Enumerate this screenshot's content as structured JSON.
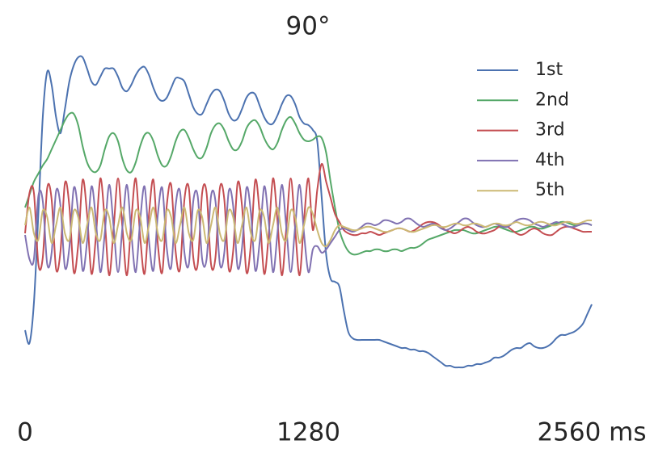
{
  "chart_data": {
    "type": "line",
    "title": "90°",
    "x": [
      0,
      20,
      40,
      60,
      80,
      100,
      120,
      140,
      160,
      180,
      200,
      220,
      240,
      260,
      280,
      300,
      320,
      340,
      360,
      380,
      400,
      420,
      440,
      460,
      480,
      500,
      520,
      540,
      560,
      580,
      600,
      620,
      640,
      660,
      680,
      700,
      720,
      740,
      760,
      780,
      800,
      820,
      840,
      860,
      880,
      900,
      920,
      940,
      960,
      980,
      1000,
      1020,
      1040,
      1060,
      1080,
      1100,
      1120,
      1140,
      1160,
      1180,
      1200,
      1220,
      1240,
      1260,
      1280,
      1300,
      1320,
      1340,
      1360,
      1380,
      1400,
      1420,
      1440,
      1460,
      1480,
      1500,
      1520,
      1540,
      1560,
      1580,
      1600,
      1620,
      1640,
      1660,
      1680,
      1700,
      1720,
      1740,
      1760,
      1780,
      1800,
      1820,
      1840,
      1860,
      1880,
      1900,
      1920,
      1940,
      1960,
      1980,
      2000,
      2020,
      2040,
      2060,
      2080,
      2100,
      2120,
      2140,
      2160,
      2180,
      2200,
      2220,
      2240,
      2260,
      2280,
      2300,
      2320,
      2340,
      2360,
      2380,
      2400,
      2420,
      2440,
      2460,
      2480,
      2500,
      2520,
      2540,
      2560
    ],
    "xlim": [
      0,
      2560
    ],
    "xticks": [
      0,
      1280,
      {
        "value": 2560,
        "label": "2560 ms"
      }
    ],
    "ylim": [
      -1.1,
      1.1
    ],
    "legend": "upper right",
    "series": [
      {
        "name": "1st",
        "color": "#4c72b0",
        "values": [
          -0.62,
          -0.7,
          -0.45,
          0.1,
          0.7,
          0.98,
          0.9,
          0.7,
          0.6,
          0.75,
          0.92,
          1.02,
          1.07,
          1.07,
          1.0,
          0.92,
          0.9,
          0.95,
          1.0,
          1.0,
          1.0,
          0.95,
          0.88,
          0.86,
          0.9,
          0.96,
          1.0,
          1.01,
          0.96,
          0.88,
          0.82,
          0.8,
          0.82,
          0.88,
          0.94,
          0.94,
          0.92,
          0.84,
          0.76,
          0.72,
          0.72,
          0.78,
          0.84,
          0.87,
          0.86,
          0.8,
          0.72,
          0.68,
          0.69,
          0.75,
          0.82,
          0.85,
          0.84,
          0.77,
          0.7,
          0.66,
          0.66,
          0.71,
          0.78,
          0.83,
          0.83,
          0.78,
          0.7,
          0.66,
          0.65,
          0.62,
          0.55,
          0.2,
          -0.15,
          -0.3,
          -0.32,
          -0.35,
          -0.5,
          -0.63,
          -0.67,
          -0.68,
          -0.68,
          -0.68,
          -0.68,
          -0.68,
          -0.68,
          -0.69,
          -0.7,
          -0.71,
          -0.72,
          -0.73,
          -0.73,
          -0.74,
          -0.74,
          -0.75,
          -0.75,
          -0.76,
          -0.78,
          -0.8,
          -0.82,
          -0.84,
          -0.84,
          -0.85,
          -0.85,
          -0.85,
          -0.84,
          -0.84,
          -0.83,
          -0.83,
          -0.82,
          -0.81,
          -0.79,
          -0.79,
          -0.78,
          -0.76,
          -0.74,
          -0.73,
          -0.73,
          -0.71,
          -0.7,
          -0.72,
          -0.73,
          -0.73,
          -0.72,
          -0.7,
          -0.67,
          -0.65,
          -0.65,
          -0.64,
          -0.63,
          -0.61,
          -0.58,
          -0.52,
          -0.46
        ]
      },
      {
        "name": "2nd",
        "color": "#55a868",
        "values": [
          0.14,
          0.22,
          0.3,
          0.35,
          0.4,
          0.44,
          0.5,
          0.56,
          0.62,
          0.68,
          0.72,
          0.72,
          0.65,
          0.52,
          0.42,
          0.37,
          0.36,
          0.4,
          0.5,
          0.58,
          0.6,
          0.55,
          0.44,
          0.37,
          0.36,
          0.42,
          0.52,
          0.59,
          0.6,
          0.55,
          0.46,
          0.4,
          0.4,
          0.46,
          0.55,
          0.61,
          0.62,
          0.57,
          0.5,
          0.45,
          0.45,
          0.51,
          0.6,
          0.65,
          0.66,
          0.62,
          0.55,
          0.5,
          0.5,
          0.55,
          0.63,
          0.67,
          0.68,
          0.64,
          0.57,
          0.52,
          0.5,
          0.54,
          0.62,
          0.68,
          0.7,
          0.66,
          0.6,
          0.56,
          0.55,
          0.56,
          0.58,
          0.57,
          0.48,
          0.3,
          0.14,
          0.0,
          -0.08,
          -0.13,
          -0.15,
          -0.15,
          -0.14,
          -0.13,
          -0.13,
          -0.12,
          -0.12,
          -0.13,
          -0.13,
          -0.12,
          -0.12,
          -0.13,
          -0.12,
          -0.11,
          -0.11,
          -0.1,
          -0.08,
          -0.06,
          -0.05,
          -0.04,
          -0.03,
          -0.02,
          -0.01,
          0.0,
          0.0,
          0.0,
          -0.01,
          -0.02,
          -0.02,
          -0.01,
          0.0,
          0.01,
          0.02,
          0.02,
          0.01,
          0.0,
          -0.01,
          -0.01,
          0.0,
          0.01,
          0.02,
          0.02,
          0.01,
          0.01,
          0.02,
          0.03,
          0.04,
          0.05,
          0.05,
          0.04,
          0.03,
          0.03,
          0.04,
          0.04,
          0.03
        ]
      },
      {
        "name": "3rd",
        "color": "#c44e52",
        "values": [
          -0.02,
          0.23,
          0.23,
          -0.21,
          -0.17,
          0.26,
          0.19,
          -0.24,
          -0.13,
          0.29,
          0.15,
          -0.26,
          -0.09,
          0.31,
          0.1,
          -0.27,
          -0.04,
          0.32,
          0.06,
          -0.28,
          0.01,
          0.32,
          0.01,
          -0.28,
          0.06,
          0.32,
          -0.04,
          -0.27,
          0.1,
          0.31,
          -0.09,
          -0.26,
          0.15,
          0.28,
          -0.13,
          -0.24,
          0.19,
          0.26,
          -0.17,
          -0.21,
          0.23,
          0.23,
          -0.21,
          -0.17,
          0.26,
          0.19,
          -0.24,
          -0.13,
          0.29,
          0.15,
          -0.26,
          -0.09,
          0.31,
          0.1,
          -0.27,
          -0.04,
          0.32,
          0.06,
          -0.28,
          0.01,
          0.32,
          0.01,
          -0.28,
          0.06,
          0.32,
          0.0,
          0.25,
          0.41,
          0.3,
          0.2,
          0.1,
          0.05,
          0.0,
          -0.02,
          -0.03,
          -0.03,
          -0.02,
          -0.02,
          -0.01,
          -0.02,
          -0.03,
          -0.02,
          -0.01,
          0.0,
          0.01,
          0.01,
          0.0,
          -0.01,
          0.0,
          0.02,
          0.04,
          0.05,
          0.05,
          0.04,
          0.02,
          0.0,
          -0.01,
          -0.02,
          -0.01,
          0.01,
          0.02,
          0.01,
          -0.01,
          -0.02,
          -0.02,
          -0.01,
          0.0,
          0.02,
          0.03,
          0.02,
          0.0,
          -0.02,
          -0.03,
          -0.02,
          0.0,
          0.01,
          0.0,
          -0.02,
          -0.03,
          -0.03,
          -0.01,
          0.01,
          0.02,
          0.02,
          0.01,
          0.0,
          -0.01,
          -0.01,
          -0.01
        ]
      },
      {
        "name": "4th",
        "color": "#8172b2",
        "values": [
          -0.03,
          -0.18,
          -0.18,
          0.21,
          0.18,
          -0.21,
          -0.14,
          0.24,
          0.15,
          -0.23,
          -0.11,
          0.26,
          0.11,
          -0.25,
          -0.07,
          0.27,
          0.06,
          -0.26,
          -0.02,
          0.28,
          0.02,
          -0.26,
          0.02,
          0.28,
          -0.02,
          -0.26,
          0.06,
          0.27,
          -0.07,
          -0.25,
          0.1,
          0.26,
          -0.11,
          -0.23,
          0.15,
          0.24,
          -0.14,
          -0.21,
          0.18,
          0.21,
          -0.18,
          -0.18,
          0.21,
          0.18,
          -0.21,
          -0.14,
          0.24,
          0.15,
          -0.23,
          -0.11,
          0.26,
          0.11,
          -0.25,
          -0.07,
          0.27,
          0.06,
          -0.26,
          -0.02,
          0.28,
          0.02,
          -0.26,
          0.02,
          0.28,
          -0.02,
          -0.26,
          -0.12,
          -0.1,
          -0.14,
          -0.12,
          -0.08,
          -0.04,
          0.0,
          0.01,
          0.0,
          -0.01,
          0.0,
          0.02,
          0.04,
          0.04,
          0.03,
          0.04,
          0.06,
          0.06,
          0.05,
          0.04,
          0.05,
          0.07,
          0.07,
          0.05,
          0.03,
          0.02,
          0.03,
          0.04,
          0.03,
          0.01,
          0.0,
          0.01,
          0.03,
          0.05,
          0.07,
          0.07,
          0.05,
          0.03,
          0.02,
          0.02,
          0.03,
          0.04,
          0.03,
          0.02,
          0.02,
          0.04,
          0.06,
          0.07,
          0.07,
          0.06,
          0.04,
          0.03,
          0.02,
          0.03,
          0.04,
          0.05,
          0.04,
          0.03,
          0.02,
          0.02,
          0.03,
          0.04,
          0.04,
          0.03
        ]
      },
      {
        "name": "5th",
        "color": "#ccb974",
        "values": [
          0.03,
          0.14,
          -0.02,
          -0.06,
          0.12,
          0.08,
          -0.08,
          0.03,
          0.14,
          -0.02,
          -0.06,
          0.12,
          0.08,
          -0.08,
          0.03,
          0.14,
          -0.02,
          -0.06,
          0.12,
          0.08,
          -0.08,
          0.03,
          0.14,
          -0.02,
          -0.06,
          0.12,
          0.08,
          -0.08,
          0.03,
          0.14,
          -0.02,
          -0.06,
          0.12,
          0.08,
          -0.08,
          0.03,
          0.14,
          -0.02,
          -0.06,
          0.12,
          0.08,
          -0.08,
          0.03,
          0.14,
          -0.02,
          -0.06,
          0.12,
          0.08,
          -0.08,
          0.03,
          0.14,
          -0.02,
          -0.06,
          0.12,
          0.08,
          -0.08,
          0.03,
          0.14,
          -0.02,
          -0.06,
          0.12,
          0.08,
          -0.08,
          0.03,
          0.14,
          0.1,
          0.0,
          -0.08,
          -0.1,
          -0.06,
          0.0,
          0.03,
          0.02,
          0.01,
          0.0,
          0.0,
          0.01,
          0.02,
          0.02,
          0.01,
          0.0,
          -0.01,
          -0.01,
          0.0,
          0.01,
          0.01,
          0.0,
          -0.01,
          -0.01,
          0.0,
          0.01,
          0.02,
          0.03,
          0.03,
          0.02,
          0.02,
          0.03,
          0.04,
          0.04,
          0.03,
          0.03,
          0.04,
          0.04,
          0.03,
          0.02,
          0.03,
          0.04,
          0.04,
          0.03,
          0.03,
          0.04,
          0.05,
          0.04,
          0.03,
          0.03,
          0.04,
          0.05,
          0.05,
          0.04,
          0.03,
          0.03,
          0.04,
          0.05,
          0.05,
          0.04,
          0.04,
          0.05,
          0.06,
          0.06
        ]
      }
    ]
  }
}
